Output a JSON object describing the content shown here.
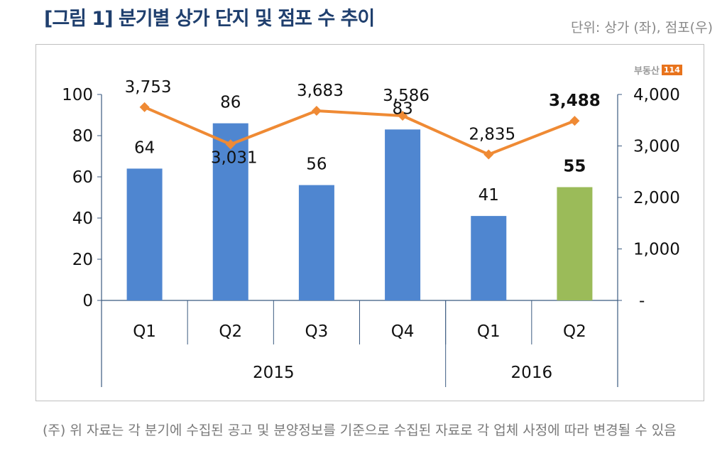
{
  "title": "[그림 1] 분기별 상가 단지 및 점포 수 추이",
  "unit": "단위: 상가 (좌), 점포(우)",
  "logo": {
    "text": "부동산",
    "badge": "114"
  },
  "note": "(주) 위 자료는 각 분기에 수집된 공고 및 분양정보를 기준으로 수집된 자료로 각 업체 사정에 따라 변경될 수 있음",
  "chart_data": {
    "type": "bar+line",
    "categories": [
      "Q1",
      "Q2",
      "Q3",
      "Q4",
      "Q1",
      "Q2"
    ],
    "years": [
      {
        "label": "2015",
        "span": 4
      },
      {
        "label": "2016",
        "span": 2
      }
    ],
    "series": [
      {
        "type": "bar",
        "axis": "left",
        "values": [
          64,
          86,
          56,
          83,
          41,
          55
        ],
        "colors": [
          "#4f86d0",
          "#4f86d0",
          "#4f86d0",
          "#4f86d0",
          "#4f86d0",
          "#9bbb59"
        ],
        "labels": [
          "64",
          "86",
          "56",
          "83",
          "41",
          "55"
        ]
      },
      {
        "type": "line",
        "axis": "right",
        "color": "#ef8a34",
        "values": [
          3753,
          3031,
          3683,
          3586,
          2835,
          3488
        ],
        "labels": [
          "3,753",
          "3,031",
          "3,683",
          "3,586",
          "2,835",
          "3,488"
        ]
      }
    ],
    "left_axis": {
      "ylim": [
        0,
        100
      ],
      "ticks": [
        "0",
        "20",
        "40",
        "60",
        "80",
        "100"
      ]
    },
    "right_axis": {
      "ylim": [
        0,
        4000
      ],
      "ticks": [
        "-",
        "1,000",
        "2,000",
        "3,000",
        "4,000"
      ]
    },
    "highlight_last": true,
    "grid": false
  }
}
